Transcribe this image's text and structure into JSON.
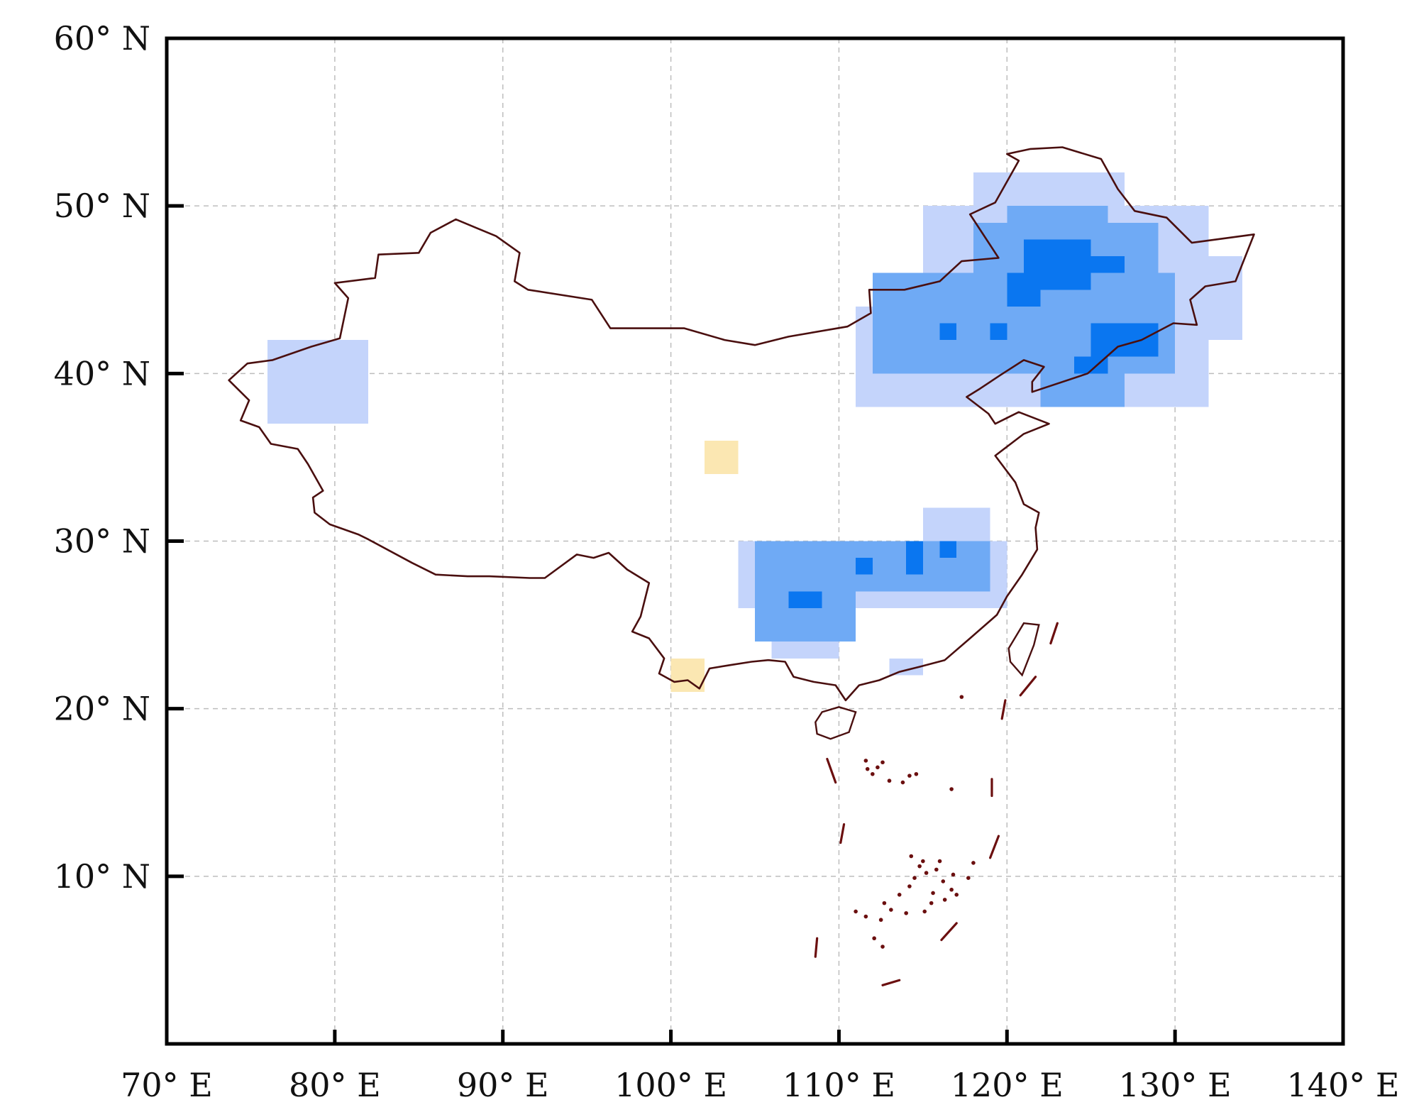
{
  "map": {
    "lon_range": [
      70,
      140
    ],
    "lat_range": [
      0,
      60
    ],
    "x_ticks": [
      {
        "value": 70,
        "label": "70° E"
      },
      {
        "value": 80,
        "label": "80° E"
      },
      {
        "value": 90,
        "label": "90° E"
      },
      {
        "value": 100,
        "label": "100° E"
      },
      {
        "value": 110,
        "label": "110° E"
      },
      {
        "value": 120,
        "label": "120° E"
      },
      {
        "value": 130,
        "label": "130° E"
      },
      {
        "value": 140,
        "label": "140° E"
      }
    ],
    "y_ticks": [
      {
        "value": 10,
        "label": "10° N"
      },
      {
        "value": 20,
        "label": "20° N"
      },
      {
        "value": 30,
        "label": "30° N"
      },
      {
        "value": 40,
        "label": "40° N"
      },
      {
        "value": 50,
        "label": "50° N"
      },
      {
        "value": 60,
        "label": "60° N"
      }
    ],
    "grid": true,
    "colors": {
      "border": "#4a0f0f",
      "islands": "#6b0f0f",
      "grid": "#bdbdbd",
      "light_blue": "#c4d4fb",
      "medium_blue": "#6faaf5",
      "dark_blue": "#0a76f0",
      "light_yellow": "#fbe7b2"
    },
    "boundary_outline": [
      [
        73.7,
        39.6
      ],
      [
        74.8,
        40.6
      ],
      [
        76.3,
        40.8
      ],
      [
        78.6,
        41.6
      ],
      [
        80.3,
        42.1
      ],
      [
        80.8,
        44.5
      ],
      [
        80.0,
        45.4
      ],
      [
        82.4,
        45.7
      ],
      [
        82.6,
        47.1
      ],
      [
        85.0,
        47.2
      ],
      [
        85.7,
        48.4
      ],
      [
        87.2,
        49.2
      ],
      [
        88.4,
        48.7
      ],
      [
        89.6,
        48.2
      ],
      [
        91.0,
        47.2
      ],
      [
        90.7,
        45.5
      ],
      [
        91.5,
        45.0
      ],
      [
        95.3,
        44.4
      ],
      [
        96.4,
        42.7
      ],
      [
        100.8,
        42.7
      ],
      [
        103.2,
        42.0
      ],
      [
        105.0,
        41.7
      ],
      [
        107.0,
        42.2
      ],
      [
        110.5,
        42.8
      ],
      [
        111.9,
        43.6
      ],
      [
        111.8,
        45.0
      ],
      [
        113.9,
        45.0
      ],
      [
        116.0,
        45.5
      ],
      [
        117.3,
        46.7
      ],
      [
        119.5,
        46.9
      ],
      [
        117.8,
        49.5
      ],
      [
        119.3,
        50.2
      ],
      [
        120.7,
        52.7
      ],
      [
        120.0,
        53.1
      ],
      [
        121.4,
        53.4
      ],
      [
        123.3,
        53.5
      ],
      [
        125.6,
        52.8
      ],
      [
        126.6,
        51.0
      ],
      [
        127.6,
        49.7
      ],
      [
        129.5,
        49.3
      ],
      [
        131.0,
        47.8
      ],
      [
        134.7,
        48.3
      ],
      [
        133.6,
        45.5
      ],
      [
        131.8,
        45.2
      ],
      [
        130.9,
        44.4
      ],
      [
        131.3,
        42.9
      ],
      [
        129.9,
        43.0
      ],
      [
        128.0,
        42.0
      ],
      [
        126.6,
        41.6
      ],
      [
        124.8,
        40.0
      ],
      [
        121.5,
        38.9
      ],
      [
        121.5,
        39.5
      ],
      [
        122.2,
        40.4
      ],
      [
        121.0,
        40.8
      ],
      [
        119.6,
        39.9
      ],
      [
        118.4,
        39.1
      ],
      [
        117.6,
        38.6
      ],
      [
        118.9,
        37.6
      ],
      [
        119.3,
        37.0
      ],
      [
        120.7,
        37.7
      ],
      [
        122.5,
        37.0
      ],
      [
        121.0,
        36.4
      ],
      [
        119.3,
        35.1
      ],
      [
        120.5,
        33.5
      ],
      [
        121.0,
        32.2
      ],
      [
        121.9,
        31.7
      ],
      [
        121.7,
        30.8
      ],
      [
        121.8,
        29.5
      ],
      [
        120.9,
        28.0
      ],
      [
        120.0,
        26.7
      ],
      [
        119.4,
        25.6
      ],
      [
        117.8,
        24.2
      ],
      [
        116.3,
        22.9
      ],
      [
        114.8,
        22.5
      ],
      [
        113.6,
        22.2
      ],
      [
        112.4,
        21.7
      ],
      [
        111.2,
        21.4
      ],
      [
        110.4,
        20.5
      ],
      [
        109.8,
        21.4
      ],
      [
        108.5,
        21.6
      ],
      [
        107.3,
        21.9
      ],
      [
        106.8,
        22.8
      ],
      [
        105.8,
        22.9
      ],
      [
        104.8,
        22.8
      ],
      [
        103.5,
        22.6
      ],
      [
        102.3,
        22.4
      ],
      [
        101.7,
        21.2
      ],
      [
        101.0,
        21.7
      ],
      [
        100.2,
        21.6
      ],
      [
        99.3,
        22.1
      ],
      [
        99.6,
        23.0
      ],
      [
        98.7,
        24.2
      ],
      [
        97.7,
        24.6
      ],
      [
        98.2,
        25.5
      ],
      [
        98.7,
        27.5
      ],
      [
        97.4,
        28.3
      ],
      [
        96.3,
        29.3
      ],
      [
        95.4,
        29.0
      ],
      [
        94.4,
        29.2
      ],
      [
        92.5,
        27.8
      ],
      [
        91.6,
        27.8
      ],
      [
        89.2,
        27.9
      ],
      [
        87.9,
        27.9
      ],
      [
        86.0,
        28.0
      ],
      [
        84.6,
        28.7
      ],
      [
        82.0,
        30.1
      ],
      [
        81.4,
        30.4
      ],
      [
        79.7,
        31.0
      ],
      [
        78.8,
        31.7
      ],
      [
        78.7,
        32.6
      ],
      [
        79.3,
        33.0
      ],
      [
        78.4,
        34.6
      ],
      [
        77.8,
        35.5
      ],
      [
        76.2,
        35.8
      ],
      [
        75.5,
        36.8
      ],
      [
        74.4,
        37.2
      ],
      [
        74.9,
        38.4
      ],
      [
        73.7,
        39.6
      ]
    ],
    "hainan_outline": [
      [
        108.6,
        19.2
      ],
      [
        109.0,
        19.8
      ],
      [
        110.0,
        20.1
      ],
      [
        111.0,
        19.8
      ],
      [
        110.6,
        18.6
      ],
      [
        109.5,
        18.2
      ],
      [
        108.7,
        18.5
      ],
      [
        108.6,
        19.2
      ]
    ],
    "taiwan_outline": [
      [
        121.0,
        25.1
      ],
      [
        121.9,
        25.0
      ],
      [
        121.6,
        23.8
      ],
      [
        120.9,
        22.0
      ],
      [
        120.2,
        22.8
      ],
      [
        120.1,
        23.6
      ],
      [
        121.0,
        25.1
      ]
    ],
    "dash_line_segments": [
      [
        [
          109.3,
          17.0
        ],
        [
          109.8,
          15.6
        ]
      ],
      [
        [
          110.3,
          13.1
        ],
        [
          110.1,
          12.0
        ]
      ],
      [
        [
          108.7,
          6.3
        ],
        [
          108.6,
          5.2
        ]
      ],
      [
        [
          112.6,
          3.5
        ],
        [
          113.6,
          3.8
        ]
      ],
      [
        [
          116.1,
          6.2
        ],
        [
          117.0,
          7.2
        ]
      ],
      [
        [
          119.0,
          11.1
        ],
        [
          119.5,
          12.4
        ]
      ],
      [
        [
          119.1,
          14.8
        ],
        [
          119.1,
          15.8
        ]
      ],
      [
        [
          119.7,
          19.4
        ],
        [
          119.9,
          20.5
        ]
      ],
      [
        [
          120.8,
          20.8
        ],
        [
          121.7,
          21.9
        ]
      ],
      [
        [
          122.6,
          23.9
        ],
        [
          123.0,
          25.1
        ]
      ]
    ],
    "island_dots": [
      [
        112.3,
        16.5
      ],
      [
        112.6,
        16.8
      ],
      [
        111.7,
        16.4
      ],
      [
        112.0,
        16.1
      ],
      [
        111.6,
        16.9
      ],
      [
        114.2,
        16.0
      ],
      [
        113.8,
        15.6
      ],
      [
        114.6,
        16.1
      ],
      [
        113.0,
        15.7
      ],
      [
        116.7,
        15.2
      ],
      [
        117.3,
        20.7
      ],
      [
        118.0,
        10.8
      ],
      [
        117.7,
        9.9
      ],
      [
        114.3,
        11.2
      ],
      [
        114.8,
        10.6
      ],
      [
        115.2,
        10.2
      ],
      [
        115.8,
        10.4
      ],
      [
        116.2,
        9.7
      ],
      [
        116.7,
        9.2
      ],
      [
        115.6,
        9.0
      ],
      [
        114.2,
        9.4
      ],
      [
        113.6,
        8.9
      ],
      [
        112.7,
        8.4
      ],
      [
        113.1,
        8.0
      ],
      [
        112.5,
        7.4
      ],
      [
        114.0,
        7.8
      ],
      [
        115.1,
        7.9
      ],
      [
        116.3,
        8.6
      ],
      [
        117.0,
        8.9
      ],
      [
        116.0,
        10.9
      ],
      [
        112.6,
        5.8
      ],
      [
        112.1,
        6.3
      ],
      [
        111.0,
        7.9
      ],
      [
        111.6,
        7.6
      ],
      [
        115.5,
        8.4
      ],
      [
        116.8,
        10.1
      ],
      [
        115.0,
        10.9
      ],
      [
        114.5,
        9.9
      ]
    ],
    "cell_size_deg": 1.0,
    "cells": [
      {
        "class": "light_blue",
        "lon_range": [
          76,
          82
        ],
        "lat_range": [
          37,
          42
        ]
      },
      {
        "class": "light_yellow",
        "lon_range": [
          102,
          104
        ],
        "lat_range": [
          34,
          36
        ]
      },
      {
        "class": "light_yellow",
        "lon_range": [
          100,
          102
        ],
        "lat_range": [
          21,
          23
        ]
      },
      {
        "class": "light_blue",
        "lon_range": [
          111,
          132
        ],
        "lat_range": [
          38,
          44
        ]
      },
      {
        "class": "light_blue",
        "lon_range": [
          115,
          132
        ],
        "lat_range": [
          44,
          50
        ]
      },
      {
        "class": "light_blue",
        "lon_range": [
          118,
          127
        ],
        "lat_range": [
          50,
          52
        ]
      },
      {
        "class": "light_blue",
        "lon_range": [
          127,
          134
        ],
        "lat_range": [
          42,
          47
        ]
      },
      {
        "class": "medium_blue",
        "lon_range": [
          112,
          130
        ],
        "lat_range": [
          40,
          46
        ]
      },
      {
        "class": "medium_blue",
        "lon_range": [
          118,
          129
        ],
        "lat_range": [
          46,
          49
        ]
      },
      {
        "class": "medium_blue",
        "lon_range": [
          120,
          126
        ],
        "lat_range": [
          49,
          50
        ]
      },
      {
        "class": "medium_blue",
        "lon_range": [
          122,
          127
        ],
        "lat_range": [
          38,
          40
        ]
      },
      {
        "class": "dark_blue",
        "lon_range": [
          121,
          125
        ],
        "lat_range": [
          45,
          48
        ]
      },
      {
        "class": "dark_blue",
        "lon_range": [
          120,
          122
        ],
        "lat_range": [
          44,
          46
        ]
      },
      {
        "class": "dark_blue",
        "lon_range": [
          125,
          127
        ],
        "lat_range": [
          46,
          47
        ]
      },
      {
        "class": "dark_blue",
        "lon_range": [
          125,
          129
        ],
        "lat_range": [
          41,
          43
        ]
      },
      {
        "class": "dark_blue",
        "lon_range": [
          124,
          126
        ],
        "lat_range": [
          40,
          41
        ]
      },
      {
        "class": "dark_blue",
        "lon_range": [
          116,
          117
        ],
        "lat_range": [
          42,
          43
        ]
      },
      {
        "class": "dark_blue",
        "lon_range": [
          119,
          120
        ],
        "lat_range": [
          42,
          43
        ]
      },
      {
        "class": "light_blue",
        "lon_range": [
          104,
          120
        ],
        "lat_range": [
          26,
          30
        ]
      },
      {
        "class": "light_blue",
        "lon_range": [
          106,
          110
        ],
        "lat_range": [
          23,
          26
        ]
      },
      {
        "class": "light_blue",
        "lon_range": [
          115,
          119
        ],
        "lat_range": [
          30,
          32
        ]
      },
      {
        "class": "light_blue",
        "lon_range": [
          113,
          115
        ],
        "lat_range": [
          22,
          23
        ]
      },
      {
        "class": "medium_blue",
        "lon_range": [
          105,
          111
        ],
        "lat_range": [
          24,
          30
        ]
      },
      {
        "class": "medium_blue",
        "lon_range": [
          111,
          119
        ],
        "lat_range": [
          27,
          30
        ]
      },
      {
        "class": "dark_blue",
        "lon_range": [
          107,
          109
        ],
        "lat_range": [
          26,
          27
        ]
      },
      {
        "class": "dark_blue",
        "lon_range": [
          111,
          112
        ],
        "lat_range": [
          28,
          29
        ]
      },
      {
        "class": "dark_blue",
        "lon_range": [
          114,
          115
        ],
        "lat_range": [
          28,
          30
        ]
      },
      {
        "class": "dark_blue",
        "lon_range": [
          116,
          117
        ],
        "lat_range": [
          29,
          30
        ]
      }
    ]
  }
}
